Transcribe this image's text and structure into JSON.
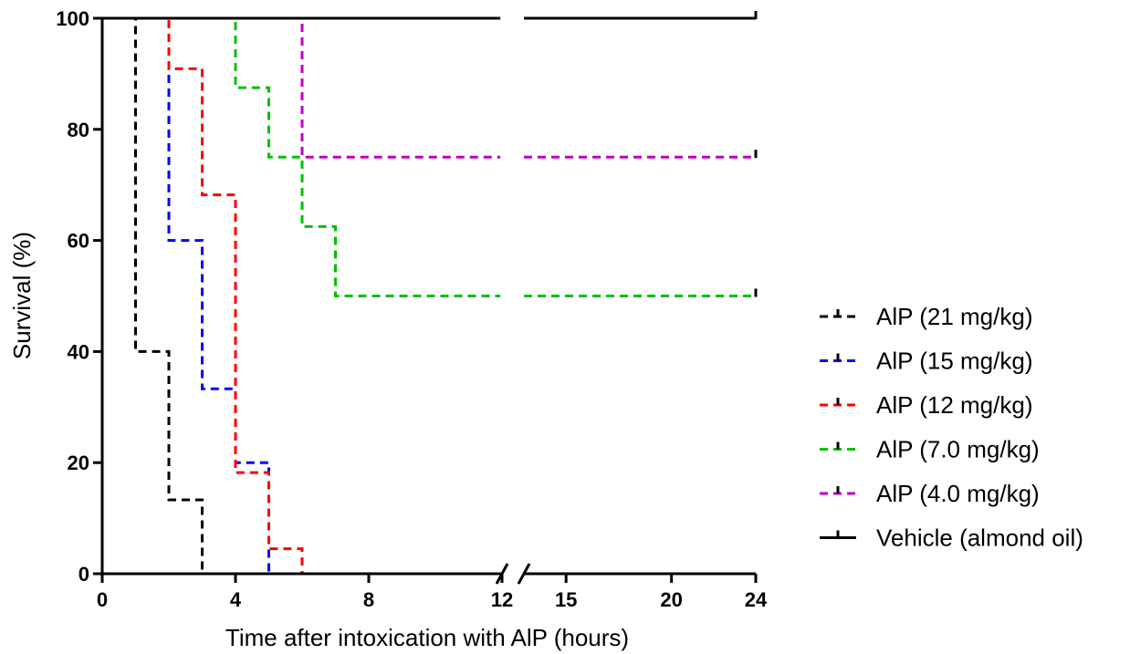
{
  "chart_data": {
    "type": "line",
    "subtype": "kaplan-meier-step",
    "title": "",
    "xlabel": "Time after intoxication with AlP (hours)",
    "ylabel": "Survival (%)",
    "ylim": [
      0,
      100
    ],
    "xlim": [
      0,
      24
    ],
    "x_axis_break": [
      12,
      13
    ],
    "x_ticks": [
      0,
      4,
      8,
      12,
      15,
      20,
      24
    ],
    "y_ticks": [
      0,
      20,
      40,
      60,
      80,
      100
    ],
    "legend_position": "right",
    "grid": false,
    "series": [
      {
        "name": "AlP (21 mg/kg)",
        "color": "#000000",
        "dashed": true,
        "times": [
          0,
          1,
          2,
          3
        ],
        "survival": [
          100,
          40,
          13.3,
          0
        ],
        "censor_end": false
      },
      {
        "name": "AlP (15 mg/kg)",
        "color": "#0000ff",
        "dashed": true,
        "times": [
          0,
          2,
          3,
          4,
          5
        ],
        "survival": [
          100,
          60,
          33.3,
          20,
          0
        ],
        "censor_end": false
      },
      {
        "name": "AlP (12 mg/kg)",
        "color": "#ff0000",
        "dashed": true,
        "times": [
          0,
          2,
          3,
          4,
          5,
          6
        ],
        "survival": [
          100,
          90.9,
          68.2,
          18.2,
          4.5,
          0
        ],
        "censor_end": false
      },
      {
        "name": "AlP (7.0 mg/kg)",
        "color": "#00c000",
        "dashed": true,
        "times": [
          0,
          4,
          5,
          6,
          7
        ],
        "survival": [
          100,
          87.5,
          75,
          62.5,
          50
        ],
        "censor_end": true
      },
      {
        "name": "AlP (4.0 mg/kg)",
        "color": "#c000c0",
        "dashed": true,
        "times": [
          0,
          6
        ],
        "survival": [
          100,
          75
        ],
        "censor_end": true
      },
      {
        "name": "Vehicle (almond oil)",
        "color": "#000000",
        "dashed": false,
        "times": [
          0
        ],
        "survival": [
          100
        ],
        "censor_end": true
      }
    ]
  }
}
